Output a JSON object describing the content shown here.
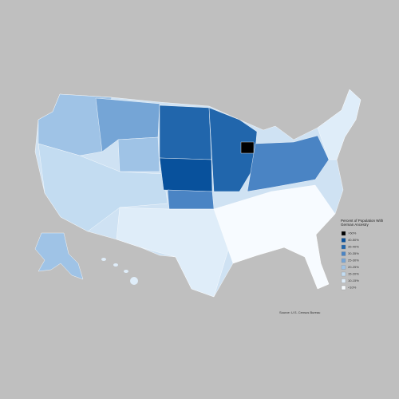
{
  "legend": {
    "title": "Percent of Population With German Ancestry",
    "items": [
      {
        "label": ">50%",
        "color": "#000000"
      },
      {
        "label": "40-50%",
        "color": "#08519c"
      },
      {
        "label": "35-40%",
        "color": "#2166ac"
      },
      {
        "label": "30-35%",
        "color": "#4a84c4"
      },
      {
        "label": "25-30%",
        "color": "#75a5d6"
      },
      {
        "label": "20-25%",
        "color": "#9fc3e6"
      },
      {
        "label": "15-20%",
        "color": "#c3dcf1"
      },
      {
        "label": "10-15%",
        "color": "#dfedf9"
      },
      {
        "label": "<10%",
        "color": "#f7fbff"
      }
    ]
  },
  "source": "Source: U.S. Census Bureau"
}
